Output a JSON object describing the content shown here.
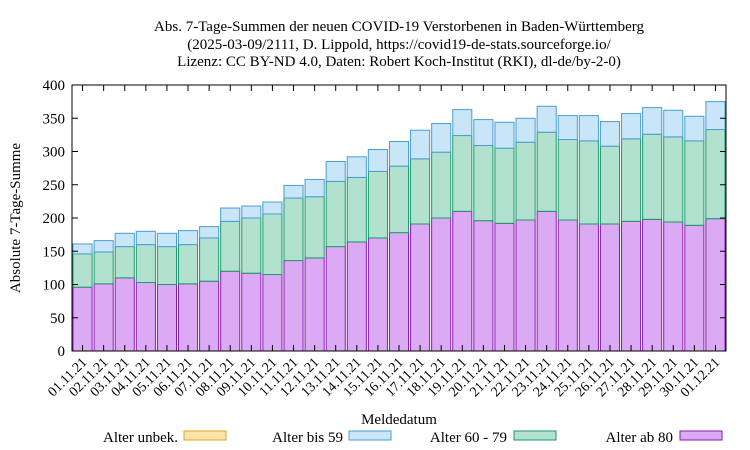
{
  "chart_data": {
    "type": "bar",
    "stacked": true,
    "title": [
      "Abs. 7-Tage-Summen der neuen COVID-19 Verstorbenen in Baden-Württemberg",
      "(2025-03-09/2111, D. Lippold, https://covid19-de-stats.sourceforge.io/",
      "Lizenz: CC BY-ND 4.0, Daten: Robert Koch-Institut (RKI), dl-de/by-2-0)"
    ],
    "xlabel": "Meldedatum",
    "ylabel": "Absolute 7-Tage-Summe",
    "ylim": [
      0,
      400
    ],
    "yticks": [
      0,
      50,
      100,
      150,
      200,
      250,
      300,
      350,
      400
    ],
    "grid": false,
    "legend_position": "bottom",
    "categories": [
      "01.11.21",
      "02.11.21",
      "03.11.21",
      "04.11.21",
      "05.11.21",
      "06.11.21",
      "07.11.21",
      "08.11.21",
      "09.11.21",
      "10.11.21",
      "11.11.21",
      "12.11.21",
      "13.11.21",
      "14.11.21",
      "15.11.21",
      "16.11.21",
      "17.11.21",
      "18.11.21",
      "19.11.21",
      "20.11.21",
      "21.11.21",
      "22.11.21",
      "23.11.21",
      "24.11.21",
      "25.11.21",
      "26.11.21",
      "27.11.21",
      "28.11.21",
      "29.11.21",
      "30.11.21",
      "01.12.21"
    ],
    "series": [
      {
        "name": "Alter ab 80",
        "color": "#dcaaf5",
        "stroke": "#8a1ab0",
        "values": [
          96,
          101,
          110,
          103,
          100,
          101,
          105,
          120,
          117,
          115,
          136,
          140,
          157,
          164,
          170,
          178,
          191,
          200,
          210,
          196,
          192,
          197,
          210,
          197,
          191,
          191,
          195,
          198,
          194,
          189,
          199
        ]
      },
      {
        "name": "Alter 60 - 79",
        "color": "#b2e2cf",
        "stroke": "#1a9a6a",
        "values": [
          50,
          48,
          47,
          57,
          57,
          59,
          65,
          75,
          83,
          91,
          94,
          92,
          98,
          97,
          100,
          100,
          98,
          99,
          114,
          113,
          113,
          117,
          119,
          121,
          125,
          117,
          124,
          128,
          128,
          127,
          134
        ]
      },
      {
        "name": "Alter bis 59",
        "color": "#c8e6f8",
        "stroke": "#4a9ed2",
        "values": [
          15,
          17,
          20,
          20,
          20,
          21,
          17,
          20,
          18,
          18,
          19,
          26,
          30,
          31,
          33,
          37,
          43,
          43,
          39,
          39,
          39,
          36,
          39,
          36,
          38,
          37,
          38,
          40,
          40,
          37,
          42
        ]
      },
      {
        "name": "Alter unbek.",
        "color": "#fbe2a8",
        "stroke": "#e8a020",
        "values": [
          0,
          0,
          0,
          0,
          0,
          0,
          0,
          0,
          0,
          0,
          0,
          0,
          0,
          0,
          0,
          0,
          0,
          0,
          0,
          0,
          0,
          0,
          0,
          0,
          0,
          0,
          0,
          0,
          0,
          0,
          0
        ]
      }
    ]
  },
  "legend_order": [
    "Alter unbek.",
    "Alter bis 59",
    "Alter 60 - 79",
    "Alter ab 80"
  ]
}
